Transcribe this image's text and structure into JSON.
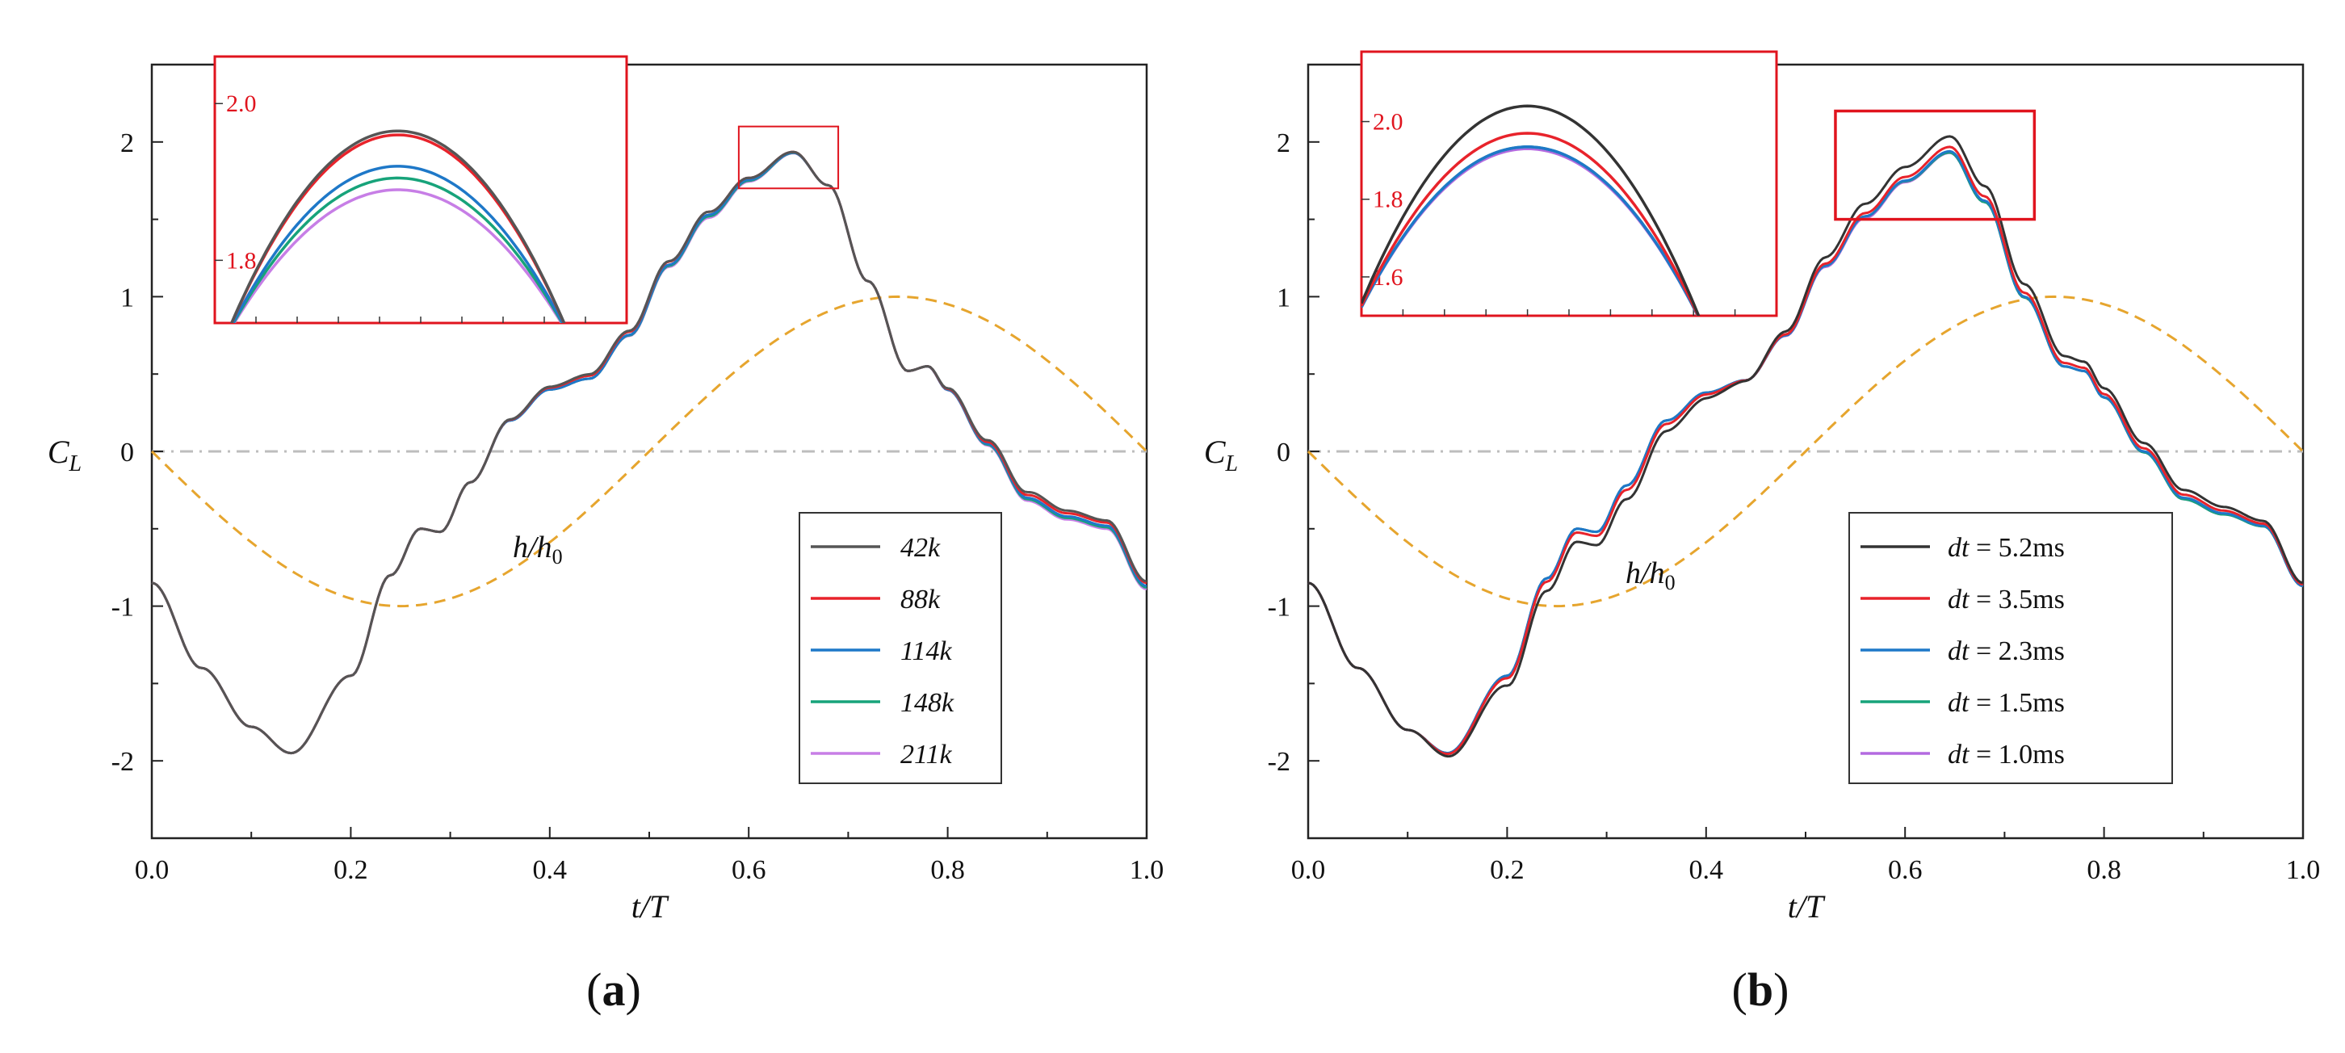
{
  "chart_data": [
    {
      "id": "a",
      "type": "line",
      "panel_label": "a",
      "xlabel": "t/T",
      "ylabel": "C_L",
      "xlim": [
        0.0,
        1.0
      ],
      "ylim": [
        -2.5,
        2.5
      ],
      "xticks": [
        "0.0",
        "0.2",
        "0.4",
        "0.6",
        "0.8",
        "1.0"
      ],
      "yticks": [
        "-2",
        "-1",
        "0",
        "1",
        "2"
      ],
      "annotation": "h/h0",
      "legend_position": "lower-right",
      "series": [
        {
          "name": "42k",
          "color": "#555555",
          "offset": [
            0.0,
            0.0,
            0.0,
            0.0,
            0.03,
            0.03,
            0.0,
            0.0,
            0.04,
            0.03
          ]
        },
        {
          "name": "88k",
          "color": "#e8232b",
          "offset": [
            0.0,
            0.0,
            0.0,
            0.0,
            0.02,
            0.03,
            0.0,
            0.0,
            0.02,
            0.02
          ]
        },
        {
          "name": "114k",
          "color": "#1e78c8",
          "offset": [
            0.0,
            0.0,
            0.0,
            0.0,
            0.0,
            0.01,
            0.0,
            0.0,
            0.0,
            0.0
          ]
        },
        {
          "name": "148k",
          "color": "#17a37a",
          "offset": [
            0.0,
            0.0,
            0.0,
            0.0,
            0.0,
            0.0,
            0.0,
            0.0,
            -0.01,
            -0.01
          ]
        },
        {
          "name": "211k",
          "color": "#c77ee6",
          "offset": [
            0.0,
            0.0,
            0.0,
            0.0,
            0.0,
            -0.01,
            0.0,
            0.0,
            -0.02,
            -0.02
          ]
        }
      ],
      "base_curve": {
        "x": [
          0.0,
          0.05,
          0.1,
          0.14,
          0.2,
          0.24,
          0.27,
          0.29,
          0.32,
          0.36,
          0.4,
          0.44,
          0.48,
          0.52,
          0.56,
          0.6,
          0.645,
          0.68,
          0.72,
          0.76,
          0.78,
          0.8,
          0.84,
          0.88,
          0.92,
          0.96,
          1.0
        ],
        "y": [
          -0.85,
          -1.4,
          -1.78,
          -1.95,
          -1.45,
          -0.8,
          -0.5,
          -0.52,
          -0.2,
          0.2,
          0.4,
          0.47,
          0.75,
          1.2,
          1.52,
          1.75,
          1.93,
          1.72,
          1.1,
          0.52,
          0.55,
          0.4,
          0.05,
          -0.3,
          -0.42,
          -0.48,
          -0.87
        ]
      },
      "dashed_sine": {
        "label": "h/h0",
        "amplitude": -1.0,
        "color": "#e6a52e"
      },
      "zero_line_color": "#bdbdbd",
      "inset": {
        "xlim": [
          0.6,
          0.69
        ],
        "ylim": [
          1.72,
          2.06
        ],
        "yticks": [
          "1.8",
          "2.0"
        ],
        "peaks": [
          1.965,
          1.96,
          1.92,
          1.905,
          1.89
        ],
        "color": "#e0141e"
      }
    },
    {
      "id": "b",
      "type": "line",
      "panel_label": "b",
      "xlabel": "t/T",
      "ylabel": "C_L",
      "xlim": [
        0.0,
        1.0
      ],
      "ylim": [
        -2.5,
        2.5
      ],
      "xticks": [
        "0.0",
        "0.2",
        "0.4",
        "0.6",
        "0.8",
        "1.0"
      ],
      "yticks": [
        "-2",
        "-1",
        "0",
        "1",
        "2"
      ],
      "annotation": "h/h0",
      "legend_position": "lower-right",
      "series": [
        {
          "name": "dt = 5.2ms",
          "color": "#333333",
          "offset": [
            0.0,
            0.0,
            -0.08,
            -0.09,
            0.0,
            0.08,
            0.1,
            0.06,
            0.05,
            0.02
          ]
        },
        {
          "name": "dt = 3.5ms",
          "color": "#e8232b",
          "offset": [
            0.0,
            0.0,
            -0.02,
            -0.03,
            0.0,
            0.02,
            0.03,
            0.02,
            0.02,
            0.01
          ]
        },
        {
          "name": "dt = 2.3ms",
          "color": "#1e78c8",
          "offset": [
            0.0,
            0.0,
            0.0,
            0.0,
            0.0,
            0.0,
            0.0,
            0.0,
            0.0,
            0.0
          ]
        },
        {
          "name": "dt = 1.5ms",
          "color": "#17a37a",
          "offset": [
            0.0,
            0.0,
            0.0,
            0.0,
            0.0,
            0.0,
            -0.01,
            0.0,
            -0.01,
            0.0
          ]
        },
        {
          "name": "dt = 1.0ms",
          "color": "#b36ae0",
          "offset": [
            0.0,
            0.0,
            0.0,
            0.0,
            0.0,
            -0.01,
            -0.01,
            0.0,
            -0.01,
            0.0
          ]
        }
      ],
      "base_curve": {
        "x": [
          0.0,
          0.05,
          0.1,
          0.14,
          0.2,
          0.24,
          0.27,
          0.29,
          0.32,
          0.36,
          0.4,
          0.44,
          0.48,
          0.52,
          0.56,
          0.6,
          0.645,
          0.68,
          0.72,
          0.76,
          0.78,
          0.8,
          0.84,
          0.88,
          0.92,
          0.96,
          1.0
        ],
        "y": [
          -0.85,
          -1.4,
          -1.8,
          -1.95,
          -1.45,
          -0.82,
          -0.5,
          -0.52,
          -0.22,
          0.2,
          0.38,
          0.46,
          0.75,
          1.2,
          1.52,
          1.75,
          1.94,
          1.62,
          1.0,
          0.55,
          0.52,
          0.35,
          0.0,
          -0.3,
          -0.4,
          -0.48,
          -0.87
        ]
      },
      "dashed_sine": {
        "label": "h/h0",
        "amplitude": -1.0,
        "color": "#e6a52e"
      },
      "zero_line_color": "#bdbdbd",
      "inset": {
        "xlim": [
          0.53,
          0.73
        ],
        "ylim": [
          1.5,
          2.18
        ],
        "yticks": [
          "1.6",
          "1.8",
          "2.0"
        ],
        "peaks": [
          2.04,
          1.97,
          1.935,
          1.935,
          1.93
        ],
        "color": "#e0141e"
      }
    }
  ]
}
